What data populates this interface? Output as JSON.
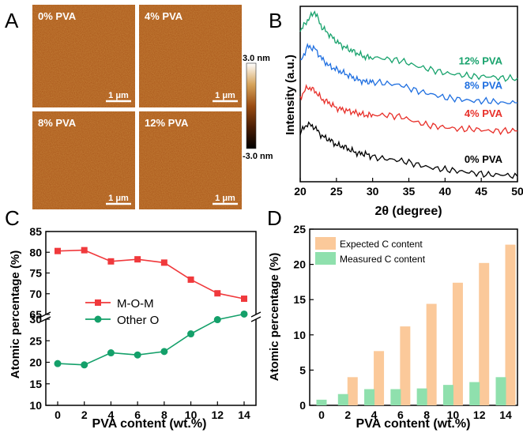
{
  "chart_data": [
    {
      "panel": "A",
      "type": "heatmap",
      "images": [
        {
          "label": "0% PVA",
          "scale_bar": "1 μm"
        },
        {
          "label": "4% PVA",
          "scale_bar": "1 μm"
        },
        {
          "label": "8% PVA",
          "scale_bar": "1 μm"
        },
        {
          "label": "12% PVA",
          "scale_bar": "1 μm"
        }
      ],
      "colorbar": {
        "max_label": "3.0 nm",
        "min_label": "-3.0 nm",
        "colors": [
          "#ffffff",
          "#d6a35a",
          "#9a4c12",
          "#4a1e05",
          "#000000"
        ]
      }
    },
    {
      "panel": "B",
      "type": "line",
      "xlabel": "2θ (degree)",
      "ylabel": "Intensity (a.u.)",
      "xlim": [
        20,
        50
      ],
      "xticks": [
        20,
        25,
        30,
        35,
        40,
        45,
        50
      ],
      "series": [
        {
          "name": "0% PVA",
          "color": "#000000",
          "x": [
            20,
            21,
            22,
            23,
            24,
            25,
            26,
            27,
            28,
            29,
            30,
            32,
            34,
            36,
            38,
            40,
            42,
            44,
            46,
            48,
            50
          ],
          "y": [
            0.28,
            0.33,
            0.31,
            0.26,
            0.24,
            0.21,
            0.2,
            0.18,
            0.16,
            0.16,
            0.14,
            0.13,
            0.12,
            0.1,
            0.08,
            0.07,
            0.06,
            0.05,
            0.04,
            0.04,
            0.03
          ]
        },
        {
          "name": "4% PVA",
          "color": "#e8302a",
          "x": [
            20,
            21,
            22,
            23,
            24,
            25,
            26,
            27,
            28,
            29,
            30,
            32,
            34,
            36,
            38,
            40,
            42,
            44,
            46,
            48,
            50
          ],
          "y": [
            0.48,
            0.54,
            0.52,
            0.47,
            0.45,
            0.42,
            0.41,
            0.4,
            0.39,
            0.38,
            0.38,
            0.38,
            0.37,
            0.34,
            0.32,
            0.31,
            0.3,
            0.3,
            0.29,
            0.29,
            0.29
          ]
        },
        {
          "name": "8% PVA",
          "color": "#1f6fe0",
          "x": [
            20,
            21,
            22,
            23,
            24,
            25,
            26,
            27,
            28,
            29,
            30,
            32,
            34,
            36,
            38,
            40,
            42,
            44,
            46,
            48,
            50
          ],
          "y": [
            0.68,
            0.77,
            0.76,
            0.7,
            0.66,
            0.64,
            0.62,
            0.6,
            0.58,
            0.57,
            0.57,
            0.56,
            0.55,
            0.52,
            0.5,
            0.48,
            0.47,
            0.46,
            0.46,
            0.45,
            0.45
          ]
        },
        {
          "name": "12% PVA",
          "color": "#17a26c",
          "x": [
            20,
            21,
            22,
            23,
            24,
            25,
            26,
            27,
            28,
            29,
            30,
            32,
            34,
            36,
            38,
            40,
            42,
            44,
            46,
            48,
            50
          ],
          "y": [
            0.86,
            0.92,
            0.97,
            0.88,
            0.84,
            0.8,
            0.77,
            0.75,
            0.73,
            0.71,
            0.71,
            0.7,
            0.69,
            0.66,
            0.64,
            0.62,
            0.61,
            0.6,
            0.6,
            0.59,
            0.59
          ]
        }
      ]
    },
    {
      "panel": "C",
      "type": "line",
      "xlabel": "PVA content (wt.%)",
      "ylabel": "Atomic percentage (%)",
      "x": [
        0,
        2,
        4,
        6,
        8,
        10,
        12,
        14
      ],
      "axis_break": true,
      "upper_ylim": [
        65,
        85
      ],
      "upper_yticks": [
        65,
        70,
        75,
        80,
        85
      ],
      "lower_ylim": [
        10,
        30
      ],
      "lower_yticks": [
        10,
        15,
        20,
        25,
        30
      ],
      "legend_position": "center-left",
      "series": [
        {
          "name": "M-O-M",
          "color": "#f0393c",
          "marker": "square",
          "values": [
            80.3,
            80.5,
            77.8,
            78.3,
            77.5,
            73.4,
            70.1,
            68.8
          ]
        },
        {
          "name": "Other O",
          "color": "#14a06a",
          "marker": "circle",
          "values": [
            19.7,
            19.4,
            22.2,
            21.7,
            22.5,
            26.6,
            29.9,
            31.2
          ]
        }
      ]
    },
    {
      "panel": "D",
      "type": "bar",
      "xlabel": "PVA content (wt.%)",
      "ylabel": "Atomic percentage (%)",
      "ylim": [
        0,
        25
      ],
      "yticks": [
        0,
        5,
        10,
        15,
        20,
        25
      ],
      "categories": [
        "0",
        "2",
        "4",
        "6",
        "8",
        "10",
        "12",
        "14"
      ],
      "legend_position": "top-left",
      "series": [
        {
          "name": "Expected C content",
          "color": "#fbc99a",
          "values": [
            0,
            4.0,
            7.7,
            11.2,
            14.4,
            17.4,
            20.2,
            22.8
          ]
        },
        {
          "name": "Measured C content",
          "color": "#8fe0ad",
          "values": [
            0.8,
            1.6,
            2.3,
            2.3,
            2.4,
            2.9,
            3.3,
            4.0
          ]
        }
      ]
    }
  ],
  "panel_letters": [
    "A",
    "B",
    "C",
    "D"
  ]
}
